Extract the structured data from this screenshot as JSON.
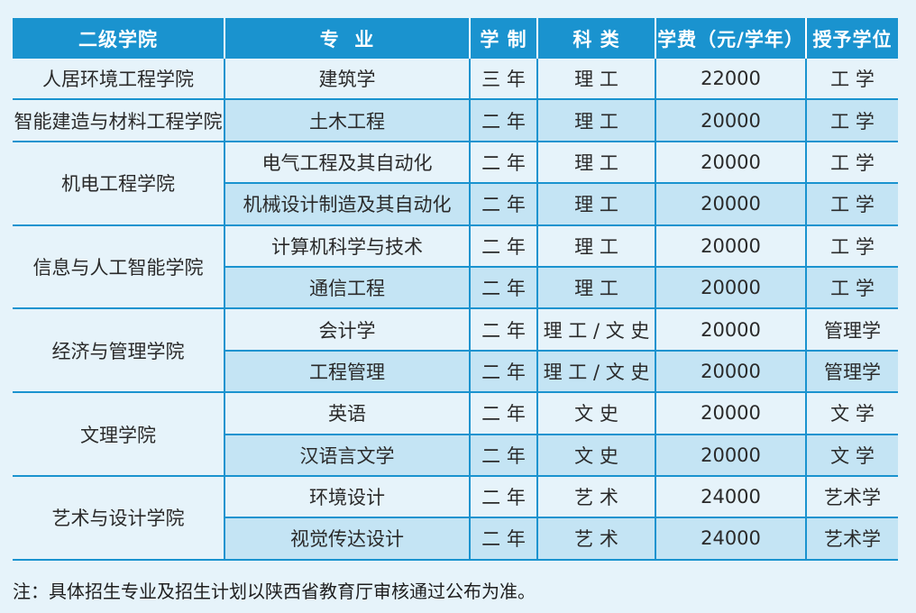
{
  "headers": [
    "二级学院",
    "专  业",
    "学 制",
    "科 类",
    "学费（元/学年）",
    "授予学位"
  ],
  "groups": [
    {
      "college": "人居环境工程学院",
      "rows": [
        {
          "major": "建筑学",
          "duration": "三 年",
          "category": "理 工",
          "tuition": "22000",
          "degree": "工 学"
        }
      ]
    },
    {
      "college": "智能建造与材料工程学院",
      "rows": [
        {
          "major": "土木工程",
          "duration": "二 年",
          "category": "理 工",
          "tuition": "20000",
          "degree": "工 学"
        }
      ]
    },
    {
      "college": "机电工程学院",
      "rows": [
        {
          "major": "电气工程及其自动化",
          "duration": "二 年",
          "category": "理 工",
          "tuition": "20000",
          "degree": "工 学"
        },
        {
          "major": "机械设计制造及其自动化",
          "duration": "二 年",
          "category": "理 工",
          "tuition": "20000",
          "degree": "工 学"
        }
      ]
    },
    {
      "college": "信息与人工智能学院",
      "rows": [
        {
          "major": "计算机科学与技术",
          "duration": "二 年",
          "category": "理 工",
          "tuition": "20000",
          "degree": "工 学"
        },
        {
          "major": "通信工程",
          "duration": "二 年",
          "category": "理 工",
          "tuition": "20000",
          "degree": "工 学"
        }
      ]
    },
    {
      "college": "经济与管理学院",
      "rows": [
        {
          "major": "会计学",
          "duration": "二 年",
          "category": "理 工 / 文 史",
          "tuition": "20000",
          "degree": "管理学"
        },
        {
          "major": "工程管理",
          "duration": "二 年",
          "category": "理 工 / 文 史",
          "tuition": "20000",
          "degree": "管理学"
        }
      ]
    },
    {
      "college": "文理学院",
      "rows": [
        {
          "major": "英语",
          "duration": "二 年",
          "category": "文 史",
          "tuition": "20000",
          "degree": "文 学"
        },
        {
          "major": "汉语言文学",
          "duration": "二 年",
          "category": "文 史",
          "tuition": "20000",
          "degree": "文 学"
        }
      ]
    },
    {
      "college": "艺术与设计学院",
      "rows": [
        {
          "major": "环境设计",
          "duration": "二 年",
          "category": "艺 术",
          "tuition": "24000",
          "degree": "艺术学"
        },
        {
          "major": "视觉传达设计",
          "duration": "二 年",
          "category": "艺 术",
          "tuition": "24000",
          "degree": "艺术学"
        }
      ]
    }
  ],
  "note": "注：具体招生专业及招生计划以陕西省教育厅审核通过公布为准。"
}
